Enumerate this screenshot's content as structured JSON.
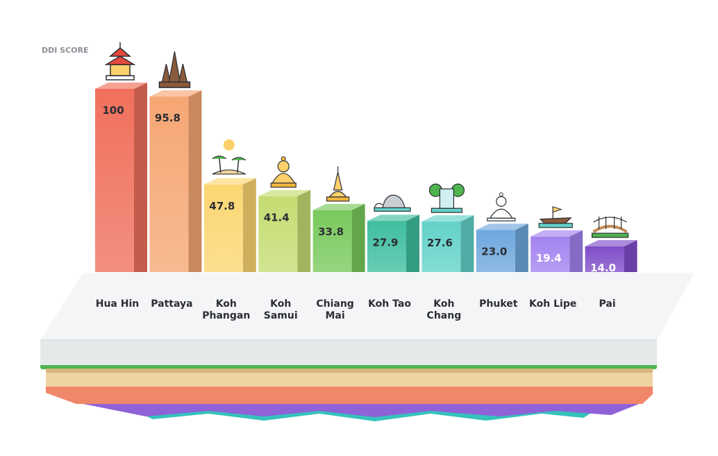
{
  "chart_data": {
    "type": "bar",
    "title": "",
    "ylabel": "DDI SCORE",
    "xlabel": "",
    "ylim": [
      0,
      100
    ],
    "grid": false,
    "legend": "none",
    "categories": [
      "Hua Hin",
      "Pattaya",
      "Koh Phangan",
      "Koh Samui",
      "Chiang Mai",
      "Koh Tao",
      "Koh Chang",
      "Phuket",
      "Koh Lipe",
      "Pai"
    ],
    "values": [
      100,
      95.8,
      47.8,
      41.4,
      33.8,
      27.9,
      27.6,
      23.0,
      19.4,
      14.0
    ],
    "value_labels": [
      "100",
      "95.8",
      "47.8",
      "41.4",
      "33.8",
      "27.9",
      "27.6",
      "23.0",
      "19.4",
      "14.0"
    ],
    "colors": [
      "#f0705c",
      "#f6a673",
      "#fcd672",
      "#c5dc72",
      "#79c95c",
      "#3fbea0",
      "#62d2c8",
      "#6ea7dd",
      "#a383f0",
      "#7f4dc9"
    ],
    "icons": [
      "thai-pavilion-icon",
      "temple-spires-icon",
      "palm-beach-sunset-icon",
      "buddha-statue-icon",
      "golden-stupa-icon",
      "rock-island-icon",
      "waterfall-icon",
      "white-buddha-icon",
      "longtail-boat-icon",
      "wooden-bridge-icon"
    ]
  }
}
